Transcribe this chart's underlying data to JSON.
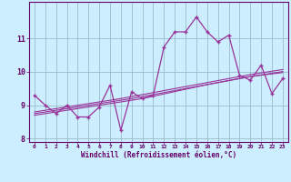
{
  "xlabel": "Windchill (Refroidissement éolien,°C)",
  "bg_color": "#cceeff",
  "line_color": "#993399",
  "grid_color": "#99bbcc",
  "text_color": "#660066",
  "spine_color": "#660066",
  "x_data": [
    0,
    1,
    2,
    3,
    4,
    5,
    6,
    7,
    8,
    9,
    10,
    11,
    12,
    13,
    14,
    15,
    16,
    17,
    18,
    19,
    20,
    21,
    22,
    23
  ],
  "y_main": [
    9.3,
    9.0,
    8.75,
    9.0,
    8.65,
    8.65,
    8.95,
    9.6,
    8.25,
    9.4,
    9.2,
    9.3,
    10.75,
    11.2,
    11.2,
    11.65,
    11.2,
    10.9,
    11.1,
    9.9,
    9.75,
    10.2,
    9.35,
    9.8
  ],
  "y_trend1": [
    8.7,
    8.75,
    8.8,
    8.85,
    8.9,
    8.95,
    9.0,
    9.05,
    9.1,
    9.15,
    9.2,
    9.27,
    9.34,
    9.41,
    9.48,
    9.55,
    9.62,
    9.68,
    9.74,
    9.8,
    9.86,
    9.9,
    9.94,
    9.98
  ],
  "y_trend2": [
    8.75,
    8.8,
    8.85,
    8.9,
    8.95,
    9.0,
    9.05,
    9.1,
    9.15,
    9.2,
    9.26,
    9.32,
    9.38,
    9.44,
    9.5,
    9.56,
    9.62,
    9.68,
    9.74,
    9.8,
    9.86,
    9.91,
    9.96,
    10.01
  ],
  "y_trend3": [
    8.8,
    8.85,
    8.9,
    8.95,
    9.0,
    9.05,
    9.1,
    9.15,
    9.2,
    9.26,
    9.32,
    9.38,
    9.44,
    9.5,
    9.56,
    9.62,
    9.68,
    9.74,
    9.8,
    9.86,
    9.92,
    9.97,
    10.02,
    10.07
  ],
  "ylim": [
    7.9,
    12.1
  ],
  "xlim": [
    -0.5,
    23.5
  ],
  "yticks": [
    8,
    9,
    10,
    11
  ],
  "xticks": [
    0,
    1,
    2,
    3,
    4,
    5,
    6,
    7,
    8,
    9,
    10,
    11,
    12,
    13,
    14,
    15,
    16,
    17,
    18,
    19,
    20,
    21,
    22,
    23
  ]
}
